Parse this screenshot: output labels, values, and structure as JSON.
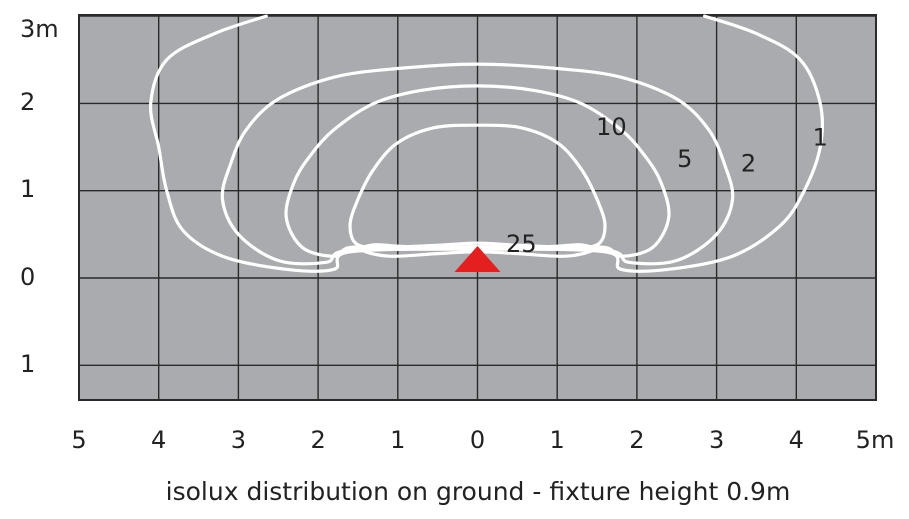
{
  "chart_data": {
    "type": "contour",
    "title": "isolux distribution on ground - fixture height 0.9m",
    "x_tick_labels": [
      "5",
      "4",
      "3",
      "2",
      "1",
      "0",
      "1",
      "2",
      "3",
      "4",
      "5m"
    ],
    "y_tick_labels": [
      "3m",
      "2",
      "1",
      "0",
      "1"
    ],
    "xlim": [
      -5,
      5
    ],
    "ylim": [
      -1.5,
      3
    ],
    "grid": true,
    "fixture_position": {
      "x": 0,
      "y": 0
    },
    "contours": [
      {
        "label": "25",
        "points": [
          [
            0.0,
            0.4
          ],
          [
            -0.4,
            0.38
          ],
          [
            -0.9,
            0.36
          ],
          [
            -1.3,
            0.38
          ],
          [
            -1.45,
            0.32
          ],
          [
            -1.1,
            0.25
          ],
          [
            -0.5,
            0.28
          ],
          [
            0.0,
            0.3
          ],
          [
            0.5,
            0.28
          ],
          [
            1.1,
            0.25
          ],
          [
            1.45,
            0.32
          ],
          [
            1.3,
            0.38
          ],
          [
            0.9,
            0.36
          ],
          [
            0.4,
            0.38
          ]
        ]
      },
      {
        "label": "10",
        "points": [
          [
            0.0,
            1.75
          ],
          [
            0.55,
            1.72
          ],
          [
            1.0,
            1.55
          ],
          [
            1.3,
            1.25
          ],
          [
            1.5,
            0.9
          ],
          [
            1.6,
            0.6
          ],
          [
            1.5,
            0.38
          ],
          [
            1.1,
            0.35
          ],
          [
            0.5,
            0.35
          ],
          [
            0.0,
            0.36
          ],
          [
            -0.5,
            0.35
          ],
          [
            -1.1,
            0.35
          ],
          [
            -1.5,
            0.38
          ],
          [
            -1.6,
            0.6
          ],
          [
            -1.5,
            0.9
          ],
          [
            -1.3,
            1.25
          ],
          [
            -1.0,
            1.55
          ],
          [
            -0.55,
            1.72
          ]
        ]
      },
      {
        "label": "5",
        "points": [
          [
            0.0,
            2.2
          ],
          [
            0.7,
            2.15
          ],
          [
            1.3,
            2.0
          ],
          [
            1.8,
            1.7
          ],
          [
            2.1,
            1.4
          ],
          [
            2.3,
            1.1
          ],
          [
            2.4,
            0.7
          ],
          [
            2.2,
            0.35
          ],
          [
            1.8,
            0.25
          ],
          [
            1.6,
            0.35
          ],
          [
            1.0,
            0.35
          ],
          [
            0.0,
            0.35
          ],
          [
            -1.0,
            0.35
          ],
          [
            -1.6,
            0.35
          ],
          [
            -1.8,
            0.25
          ],
          [
            -2.2,
            0.35
          ],
          [
            -2.4,
            0.7
          ],
          [
            -2.3,
            1.1
          ],
          [
            -2.1,
            1.4
          ],
          [
            -1.8,
            1.7
          ],
          [
            -1.3,
            2.0
          ],
          [
            -0.7,
            2.15
          ]
        ]
      },
      {
        "label": "2",
        "points": [
          [
            0.0,
            2.45
          ],
          [
            1.0,
            2.4
          ],
          [
            1.8,
            2.3
          ],
          [
            2.5,
            2.05
          ],
          [
            2.9,
            1.7
          ],
          [
            3.1,
            1.3
          ],
          [
            3.2,
            0.9
          ],
          [
            3.0,
            0.5
          ],
          [
            2.5,
            0.2
          ],
          [
            1.9,
            0.18
          ],
          [
            1.6,
            0.32
          ],
          [
            0.0,
            0.34
          ],
          [
            -1.6,
            0.32
          ],
          [
            -1.9,
            0.18
          ],
          [
            -2.5,
            0.2
          ],
          [
            -3.0,
            0.5
          ],
          [
            -3.2,
            0.9
          ],
          [
            -3.1,
            1.3
          ],
          [
            -2.9,
            1.7
          ],
          [
            -2.5,
            2.05
          ],
          [
            -1.8,
            2.3
          ],
          [
            -1.0,
            2.4
          ]
        ]
      },
      {
        "label": "1",
        "points": [
          [
            -2.65,
            3.0
          ],
          [
            -3.3,
            2.8
          ],
          [
            -3.9,
            2.5
          ],
          [
            -4.1,
            2.0
          ],
          [
            -4.0,
            1.5
          ],
          [
            -3.9,
            1.0
          ],
          [
            -3.7,
            0.55
          ],
          [
            -3.2,
            0.25
          ],
          [
            -2.4,
            0.1
          ],
          [
            -1.8,
            0.1
          ],
          [
            -1.6,
            0.3
          ],
          [
            0.0,
            0.33
          ],
          [
            1.6,
            0.3
          ],
          [
            1.8,
            0.1
          ],
          [
            2.4,
            0.1
          ],
          [
            3.2,
            0.25
          ],
          [
            3.8,
            0.6
          ],
          [
            4.1,
            1.0
          ],
          [
            4.3,
            1.5
          ],
          [
            4.3,
            2.0
          ],
          [
            4.05,
            2.5
          ],
          [
            3.5,
            2.8
          ],
          [
            2.85,
            3.0
          ]
        ]
      }
    ],
    "contour_labels": [
      {
        "text": "25",
        "x": 0.55,
        "y": 0.38
      },
      {
        "text": "10",
        "x": 1.68,
        "y": 1.72
      },
      {
        "text": "5",
        "x": 2.6,
        "y": 1.35
      },
      {
        "text": "2",
        "x": 3.4,
        "y": 1.3
      },
      {
        "text": "1",
        "x": 4.3,
        "y": 1.6
      }
    ],
    "colors": {
      "background": "#a9abae",
      "grid": "#2a2a2a",
      "contour": "#ffffff",
      "fixture": "#e3201f",
      "text": "#222222"
    }
  }
}
